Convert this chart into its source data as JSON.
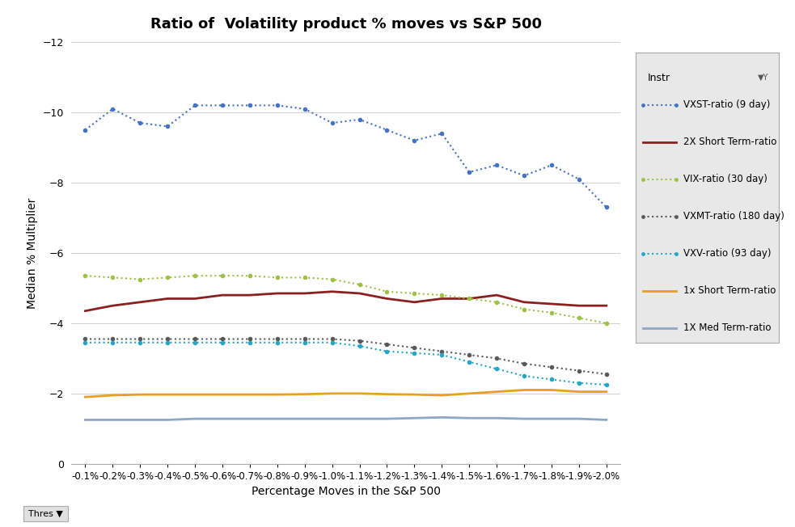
{
  "title": "Ratio of  Volatility product % moves vs S&P 500",
  "xlabel": "Percentage Moves in the S&P 500",
  "ylabel": "Median % Multiplier",
  "x_labels": [
    "-0.1%",
    "-0.2%",
    "-0.3%",
    "-0.4%",
    "-0.5%",
    "-0.6%",
    "-0.7%",
    "-0.8%",
    "-0.9%",
    "-1.0%",
    "-1.1%",
    "-1.2%",
    "-1.3%",
    "-1.4%",
    "-1.5%",
    "-1.6%",
    "-1.7%",
    "-1.8%",
    "-1.9%",
    "-2.0%"
  ],
  "ylim": [
    -12,
    0
  ],
  "yticks": [
    -12,
    -10,
    -8,
    -6,
    -4,
    -2,
    0
  ],
  "series": {
    "VXST": {
      "label": "VXST-ratio (9 day)",
      "color": "#4472C4",
      "linestyle": "dotted",
      "linewidth": 1.5,
      "markersize": 4,
      "values": [
        -9.5,
        -10.1,
        -9.7,
        -9.6,
        -10.2,
        -10.2,
        -10.2,
        -10.2,
        -10.1,
        -9.7,
        -9.8,
        -9.5,
        -9.2,
        -9.4,
        -8.3,
        -8.5,
        -8.2,
        -8.5,
        -8.1,
        -7.3
      ]
    },
    "2XST": {
      "label": "2X Short Term-ratio",
      "color": "#8B2020",
      "linestyle": "solid",
      "linewidth": 2.0,
      "markersize": 0,
      "values": [
        -4.35,
        -4.5,
        -4.6,
        -4.7,
        -4.7,
        -4.8,
        -4.8,
        -4.85,
        -4.85,
        -4.9,
        -4.85,
        -4.7,
        -4.6,
        -4.7,
        -4.7,
        -4.8,
        -4.6,
        -4.55,
        -4.5,
        -4.5
      ]
    },
    "VIX": {
      "label": "VIX-ratio (30 day)",
      "color": "#9DC143",
      "linestyle": "dotted",
      "linewidth": 1.5,
      "markersize": 4,
      "values": [
        -5.35,
        -5.3,
        -5.25,
        -5.3,
        -5.35,
        -5.35,
        -5.35,
        -5.3,
        -5.3,
        -5.25,
        -5.1,
        -4.9,
        -4.85,
        -4.8,
        -4.7,
        -4.6,
        -4.4,
        -4.3,
        -4.15,
        -4.0
      ]
    },
    "VXMT": {
      "label": "VXMT-ratio (180 day)",
      "color": "#595959",
      "linestyle": "dotted",
      "linewidth": 1.5,
      "markersize": 4,
      "values": [
        -3.55,
        -3.55,
        -3.55,
        -3.55,
        -3.55,
        -3.55,
        -3.55,
        -3.55,
        -3.55,
        -3.55,
        -3.5,
        -3.4,
        -3.3,
        -3.2,
        -3.1,
        -3.0,
        -2.85,
        -2.75,
        -2.65,
        -2.55
      ]
    },
    "VXV": {
      "label": "VXV-ratio (93 day)",
      "color": "#23A6C8",
      "linestyle": "dotted",
      "linewidth": 1.5,
      "markersize": 4,
      "values": [
        -3.45,
        -3.45,
        -3.45,
        -3.45,
        -3.45,
        -3.45,
        -3.45,
        -3.45,
        -3.45,
        -3.45,
        -3.35,
        -3.2,
        -3.15,
        -3.1,
        -2.9,
        -2.7,
        -2.5,
        -2.4,
        -2.3,
        -2.25
      ]
    },
    "1XST": {
      "label": "1x Short Term-ratio",
      "color": "#E8A020",
      "linestyle": "solid",
      "linewidth": 2.0,
      "markersize": 0,
      "values": [
        -1.9,
        -1.95,
        -1.97,
        -1.97,
        -1.97,
        -1.97,
        -1.97,
        -1.97,
        -1.98,
        -2.0,
        -2.0,
        -1.98,
        -1.97,
        -1.95,
        -2.0,
        -2.05,
        -2.1,
        -2.1,
        -2.05,
        -2.05
      ]
    },
    "1XMT": {
      "label": "1X Med Term-ratio",
      "color": "#8EA8C8",
      "linestyle": "solid",
      "linewidth": 2.0,
      "markersize": 0,
      "values": [
        -1.25,
        -1.25,
        -1.25,
        -1.25,
        -1.28,
        -1.28,
        -1.28,
        -1.28,
        -1.28,
        -1.28,
        -1.28,
        -1.28,
        -1.3,
        -1.32,
        -1.3,
        -1.3,
        -1.28,
        -1.28,
        -1.28,
        -1.25
      ]
    }
  },
  "legend_title": "Instr",
  "background_color": "#FFFFFF",
  "plot_bg_color": "#FFFFFF",
  "grid_color": "#D0D0D0"
}
